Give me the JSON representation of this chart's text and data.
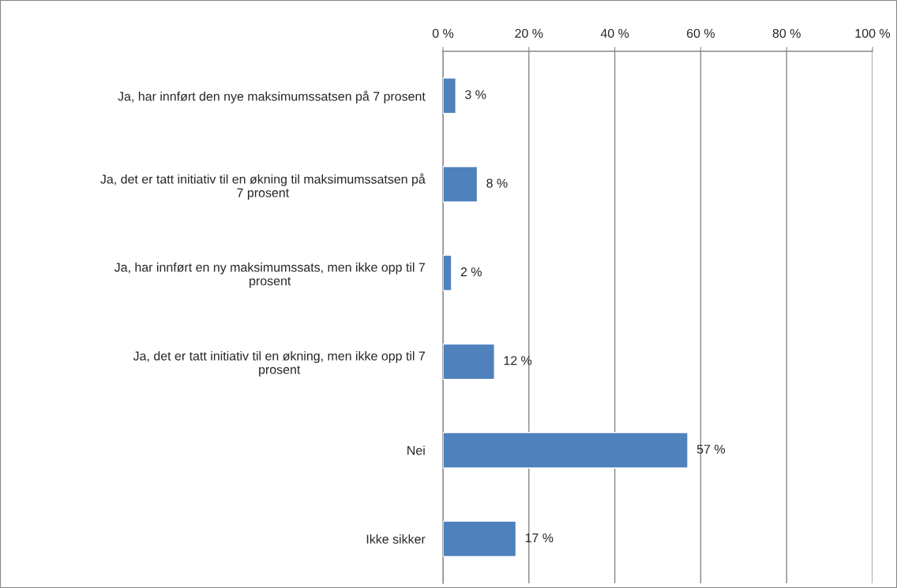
{
  "chart_data": {
    "type": "bar",
    "orientation": "horizontal",
    "categories": [
      "Ja, har innført den nye maksimumssatsen på 7 prosent",
      "Ja, det er tatt initiativ til en økning til maksimumssatsen på\n7 prosent",
      "Ja, har innført en ny maksimumssats, men ikke opp til 7\nprosent",
      "Ja, det er tatt initiativ til en økning, men ikke opp til 7\nprosent",
      "Nei",
      "Ikke sikker"
    ],
    "values": [
      3,
      8,
      2,
      12,
      57,
      17
    ],
    "color": "#4f81bd",
    "value_labels": [
      "3 %",
      "8 %",
      "2 %",
      "12 %",
      "57 %",
      "17 %"
    ],
    "xlim": [
      0,
      100
    ],
    "xticks": [
      {
        "value": 0,
        "label": "0 %"
      },
      {
        "value": 20,
        "label": "20 %"
      },
      {
        "value": 40,
        "label": "40 %"
      },
      {
        "value": 60,
        "label": "60 %"
      },
      {
        "value": 80,
        "label": "80 %"
      },
      {
        "value": 100,
        "label": "100 %"
      }
    ],
    "grid": "x"
  }
}
